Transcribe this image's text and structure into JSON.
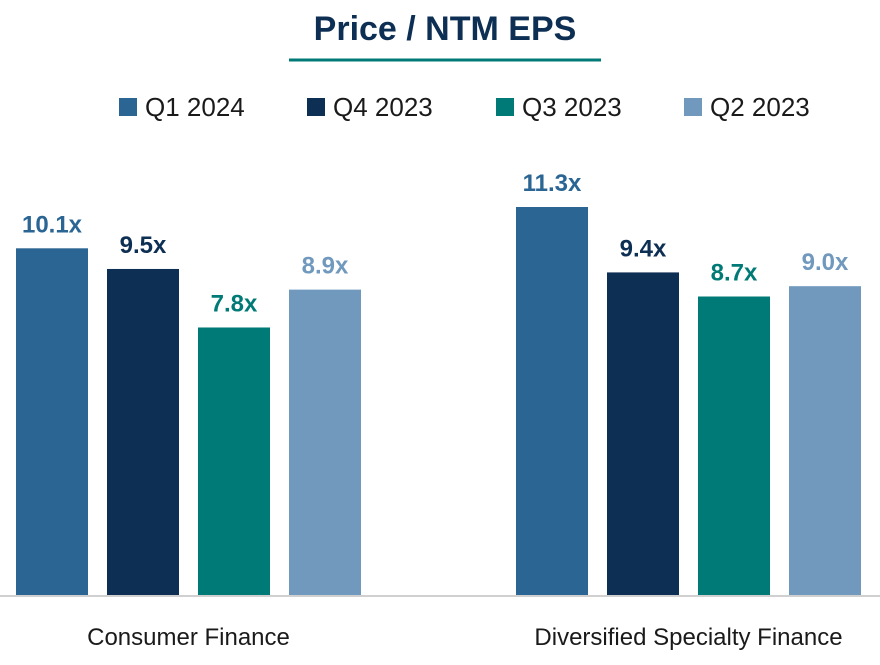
{
  "chart_data": {
    "type": "bar",
    "title": "Price / NTM EPS",
    "categories": [
      "Consumer Finance",
      "Diversified Specialty Finance"
    ],
    "series": [
      {
        "name": "Q1 2024",
        "color": "#2a6593",
        "values": [
          10.1,
          11.3
        ],
        "labels": [
          "10.1x",
          "11.3x"
        ]
      },
      {
        "name": "Q4 2023",
        "color": "#0e2f54",
        "values": [
          9.5,
          9.4
        ],
        "labels": [
          "9.5x",
          "9.4x"
        ]
      },
      {
        "name": "Q3 2023",
        "color": "#007a76",
        "values": [
          7.8,
          8.7
        ],
        "labels": [
          "7.8x",
          "8.7x"
        ]
      },
      {
        "name": "Q2 2023",
        "color": "#7199bd",
        "values": [
          8.9,
          9.0
        ],
        "labels": [
          "8.9x",
          "9.0x"
        ]
      }
    ],
    "ylim": [
      0,
      11.3
    ],
    "grid": false,
    "legend": "top",
    "title_color": "#0e2f54",
    "title_underline_color": "#007a76",
    "axis_color": "#d0d0d0"
  }
}
